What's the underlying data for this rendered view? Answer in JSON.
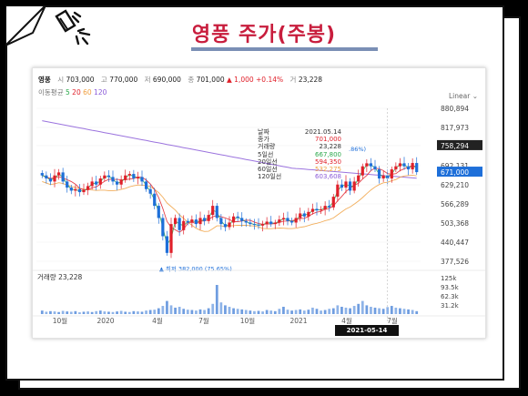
{
  "header": {
    "title": "영풍 주가(주봉)"
  },
  "quote": {
    "name": "영풍",
    "open_label": "시",
    "open": "703,000",
    "high_label": "고",
    "high": "770,000",
    "low_label": "저",
    "low": "690,000",
    "close_label": "종",
    "close": "701,000",
    "change": "▲ 1,000 +0.14%",
    "volume_label": "거",
    "volume": "23,228"
  },
  "ma_bar": {
    "label": "이동평균",
    "p5": "5",
    "p20": "20",
    "p60": "60",
    "p120": "120"
  },
  "scale_mode": "Linear",
  "tooltip": {
    "rows": [
      {
        "label": "날짜",
        "value": "2021.05.14",
        "color": "#333333"
      },
      {
        "label": "종가",
        "value": "701,000",
        "color": "#e0202a"
      },
      {
        "label": "거래량",
        "value": "23,228",
        "color": "#333333"
      },
      {
        "label": "5일선",
        "value": "667,800",
        "color": "#2aa84a"
      },
      {
        "label": "20일선",
        "value": "594,350",
        "color": "#e0202a"
      },
      {
        "label": "60일선",
        "value": "532,275",
        "color": "#f0a040"
      },
      {
        "label": "120일선",
        "value": "603,608",
        "color": "#8a5ad8"
      }
    ],
    "badge": ".86%)"
  },
  "price_axis": [
    "880,894",
    "817,973",
    "758,294",
    "692,131",
    "629,210",
    "566,289",
    "503,368",
    "440,447",
    "377,526"
  ],
  "current_price_tag": "758,294",
  "close_tag": "671,000",
  "low_marker": "▲ 최저 382,000 (75.65%)",
  "volume_label": "거래량 23,228",
  "volume_axis": [
    "125k",
    "93.5k",
    "62.3k",
    "31.2k"
  ],
  "x_labels": [
    "10월",
    "2020",
    "4월",
    "7월",
    "10월",
    "2021",
    "4월",
    "7월"
  ],
  "crosshair_date": "2021-05-14",
  "colors": {
    "up": "#e0202a",
    "down": "#1e6fd9",
    "ma5": "#2aa84a",
    "ma20": "#e0202a",
    "ma60": "#f0a040",
    "ma120": "#8a5ad8",
    "title": "#c81d3d"
  },
  "chart_data": {
    "type": "candlestick",
    "period": "weekly",
    "ylim": [
      377526,
      880894
    ],
    "closes": [
      660000,
      650000,
      640000,
      660000,
      670000,
      640000,
      620000,
      610000,
      615000,
      605000,
      612000,
      625000,
      640000,
      630000,
      650000,
      660000,
      655000,
      640000,
      630000,
      645000,
      660000,
      665000,
      650000,
      655000,
      640000,
      615000,
      600000,
      560000,
      520000,
      460000,
      405000,
      500000,
      520000,
      480000,
      510000,
      505000,
      515000,
      500000,
      520000,
      510000,
      530000,
      560000,
      520000,
      500000,
      490000,
      505000,
      525000,
      520000,
      510000,
      505000,
      500000,
      498000,
      495000,
      500000,
      508000,
      500000,
      505000,
      515000,
      520000,
      510000,
      505000,
      520000,
      535000,
      525000,
      540000,
      550000,
      545000,
      548000,
      560000,
      555000,
      590000,
      630000,
      620000,
      640000,
      610000,
      640000,
      660000,
      690000,
      700000,
      690000,
      680000,
      650000,
      660000,
      650000,
      680000,
      690000,
      700000,
      690000,
      680000,
      701000,
      671000
    ],
    "volumes": [
      12,
      8,
      10,
      9,
      7,
      11,
      9,
      8,
      10,
      6,
      8,
      9,
      7,
      10,
      12,
      9,
      8,
      7,
      9,
      11,
      8,
      7,
      10,
      9,
      8,
      12,
      14,
      15,
      20,
      28,
      45,
      30,
      22,
      25,
      18,
      15,
      14,
      12,
      16,
      14,
      20,
      35,
      100,
      40,
      30,
      25,
      20,
      18,
      16,
      14,
      12,
      10,
      11,
      9,
      14,
      12,
      10,
      18,
      25,
      15,
      12,
      14,
      16,
      12,
      15,
      22,
      18,
      12,
      14,
      18,
      20,
      30,
      25,
      22,
      20,
      28,
      35,
      45,
      30,
      25,
      22,
      20,
      18,
      24,
      28,
      22,
      20,
      18,
      16,
      14,
      10
    ]
  }
}
